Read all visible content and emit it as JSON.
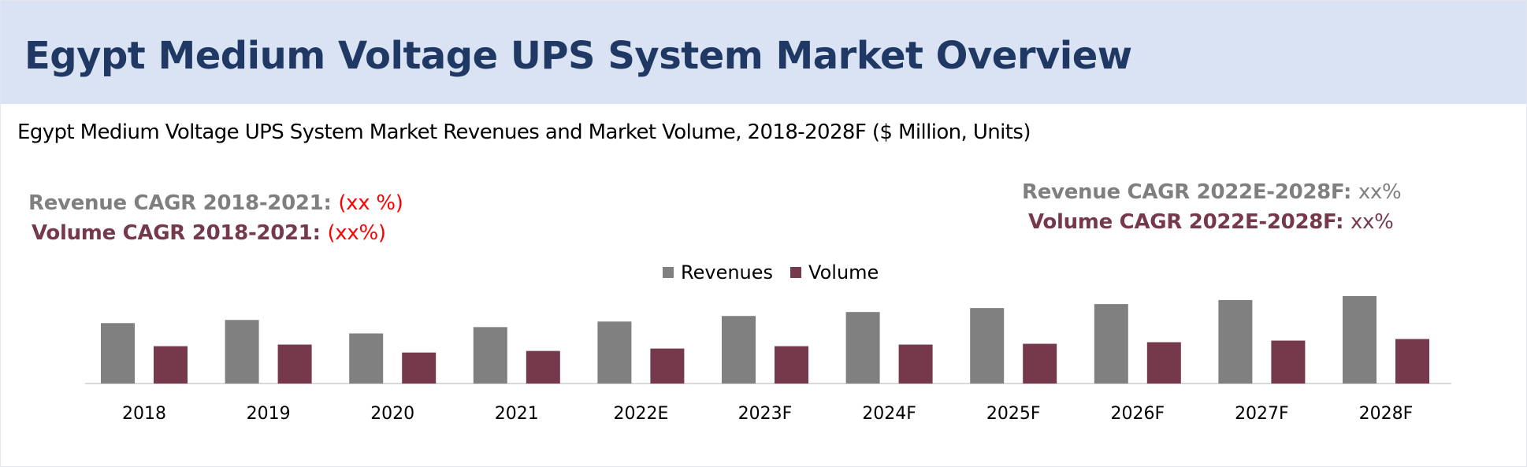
{
  "header": {
    "title": "Egypt Medium Voltage UPS System Market Overview"
  },
  "subtitle": "Egypt Medium Voltage UPS System Market Revenues and Market Volume, 2018-2028F ($ Million, Units)",
  "cagr_left": {
    "revenue_label": "Revenue CAGR 2018-2021:",
    "revenue_value": "(xx %)",
    "volume_label": "Volume CAGR 2018-2021:",
    "volume_value": "(xx%)"
  },
  "cagr_right": {
    "revenue_label": "Revenue CAGR 2022E-2028F:",
    "revenue_value": "xx%",
    "volume_label": "Volume CAGR 2022E-2028F:",
    "volume_value": "xx%"
  },
  "colors": {
    "revenues": "#808080",
    "volume": "#76394b",
    "banner": "#dae3f3",
    "title": "#1f3864",
    "highlight": "#ff0000"
  },
  "chart_data": {
    "type": "bar",
    "categories": [
      "2018",
      "2019",
      "2020",
      "2021",
      "2022E",
      "2023F",
      "2024F",
      "2025F",
      "2026F",
      "2027F",
      "2028F"
    ],
    "series": [
      {
        "name": "Revenues",
        "values": [
          76,
          80,
          63,
          71,
          78,
          85,
          90,
          95,
          100,
          105,
          110
        ]
      },
      {
        "name": "Volume",
        "values": [
          47,
          49,
          39,
          41,
          44,
          47,
          49,
          50,
          52,
          54,
          56
        ]
      }
    ],
    "ylim": [
      0,
      110
    ],
    "axis_visible": false,
    "grid": false,
    "legend_position": "top-center"
  }
}
